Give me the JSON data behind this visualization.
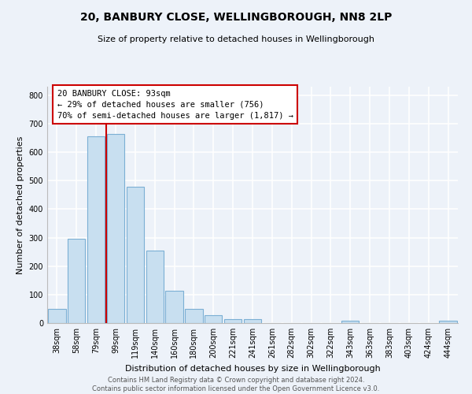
{
  "title": "20, BANBURY CLOSE, WELLINGBOROUGH, NN8 2LP",
  "subtitle": "Size of property relative to detached houses in Wellingborough",
  "xlabel": "Distribution of detached houses by size in Wellingborough",
  "ylabel": "Number of detached properties",
  "bar_labels": [
    "38sqm",
    "58sqm",
    "79sqm",
    "99sqm",
    "119sqm",
    "140sqm",
    "160sqm",
    "180sqm",
    "200sqm",
    "221sqm",
    "241sqm",
    "261sqm",
    "282sqm",
    "302sqm",
    "322sqm",
    "343sqm",
    "363sqm",
    "383sqm",
    "403sqm",
    "424sqm",
    "444sqm"
  ],
  "bar_values": [
    50,
    295,
    655,
    665,
    480,
    255,
    113,
    49,
    28,
    15,
    14,
    0,
    0,
    0,
    0,
    8,
    0,
    0,
    0,
    0,
    7
  ],
  "bar_color": "#c8dff0",
  "bar_edge_color": "#7bafd4",
  "vline_color": "#cc0000",
  "ylim": [
    0,
    830
  ],
  "yticks": [
    0,
    100,
    200,
    300,
    400,
    500,
    600,
    700,
    800
  ],
  "annotation_line1": "20 BANBURY CLOSE: 93sqm",
  "annotation_line2": "← 29% of detached houses are smaller (756)",
  "annotation_line3": "70% of semi-detached houses are larger (1,817) →",
  "annotation_box_edgecolor": "#cc0000",
  "footer_line1": "Contains HM Land Registry data © Crown copyright and database right 2024.",
  "footer_line2": "Contains public sector information licensed under the Open Government Licence v3.0.",
  "bg_color": "#edf2f9",
  "grid_color": "#ffffff",
  "title_fontsize": 10,
  "subtitle_fontsize": 8,
  "ylabel_fontsize": 8,
  "xlabel_fontsize": 8,
  "tick_fontsize": 7,
  "ann_fontsize": 7.5,
  "footer_fontsize": 6
}
